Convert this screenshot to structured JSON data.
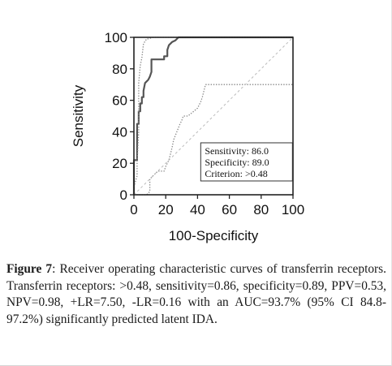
{
  "chart_data": {
    "type": "line",
    "xlabel": "100-Specificity",
    "ylabel": "Sensitivity",
    "xlim": [
      0,
      100
    ],
    "ylim": [
      0,
      100
    ],
    "xticks": [
      "0",
      "20",
      "40",
      "60",
      "80",
      "100"
    ],
    "yticks": [
      "0",
      "20",
      "40",
      "60",
      "80",
      "100"
    ],
    "series": [
      {
        "style": "solid",
        "color": "#555555",
        "x": [
          0,
          0,
          2,
          2,
          3,
          3,
          4,
          4,
          5,
          5,
          6,
          6,
          7,
          8,
          9,
          10,
          11,
          11,
          14,
          19,
          19,
          21,
          21,
          22,
          24,
          26,
          28,
          100
        ],
        "y": [
          0,
          22,
          22,
          45,
          45,
          53,
          53,
          58,
          58,
          62,
          62,
          66,
          71,
          72,
          73,
          75,
          78,
          86,
          86,
          86,
          88,
          88,
          92,
          95,
          97,
          98,
          100,
          100
        ]
      },
      {
        "style": "dotted",
        "color": "#888888",
        "x": [
          0,
          0,
          2,
          2,
          3,
          3,
          4,
          5,
          6,
          8,
          9,
          12,
          100
        ],
        "y": [
          0,
          5,
          12,
          20,
          40,
          71,
          82,
          87,
          96,
          99,
          99,
          100,
          100
        ]
      },
      {
        "style": "dotted",
        "color": "#888888",
        "x": [
          0,
          8,
          10,
          10,
          13,
          15,
          19,
          20,
          22,
          23,
          24,
          25,
          27,
          29,
          30,
          31,
          34,
          40,
          42,
          43,
          45,
          80,
          100
        ],
        "y": [
          0,
          0,
          2,
          10,
          13,
          15,
          15,
          18,
          22,
          26,
          30,
          35,
          40,
          45,
          47,
          50,
          50,
          55,
          59,
          62,
          70,
          70,
          70
        ]
      },
      {
        "style": "dotted",
        "color": "#888888",
        "x": [
          80,
          100
        ],
        "y": [
          100,
          100
        ]
      },
      {
        "style": "dashed",
        "color": "#bbbbbb",
        "x": [
          0,
          100
        ],
        "y": [
          0,
          100
        ]
      }
    ],
    "legend": [
      "Sensitivity: 86.0",
      "Specificity: 89.0",
      "Criterion: >0.48"
    ]
  },
  "caption": {
    "label": "Figure 7",
    "text": ": Receiver operating characteristic curves of transferrin receptors. Transferrin receptors: >0.48, sensitivity=0.86, specificity=0.89, PPV=0.53, NPV=0.98, +LR=7.50, -LR=0.16 with an AUC=93.7% (95% CI 84.8-97.2%) significantly predicted latent IDA."
  }
}
